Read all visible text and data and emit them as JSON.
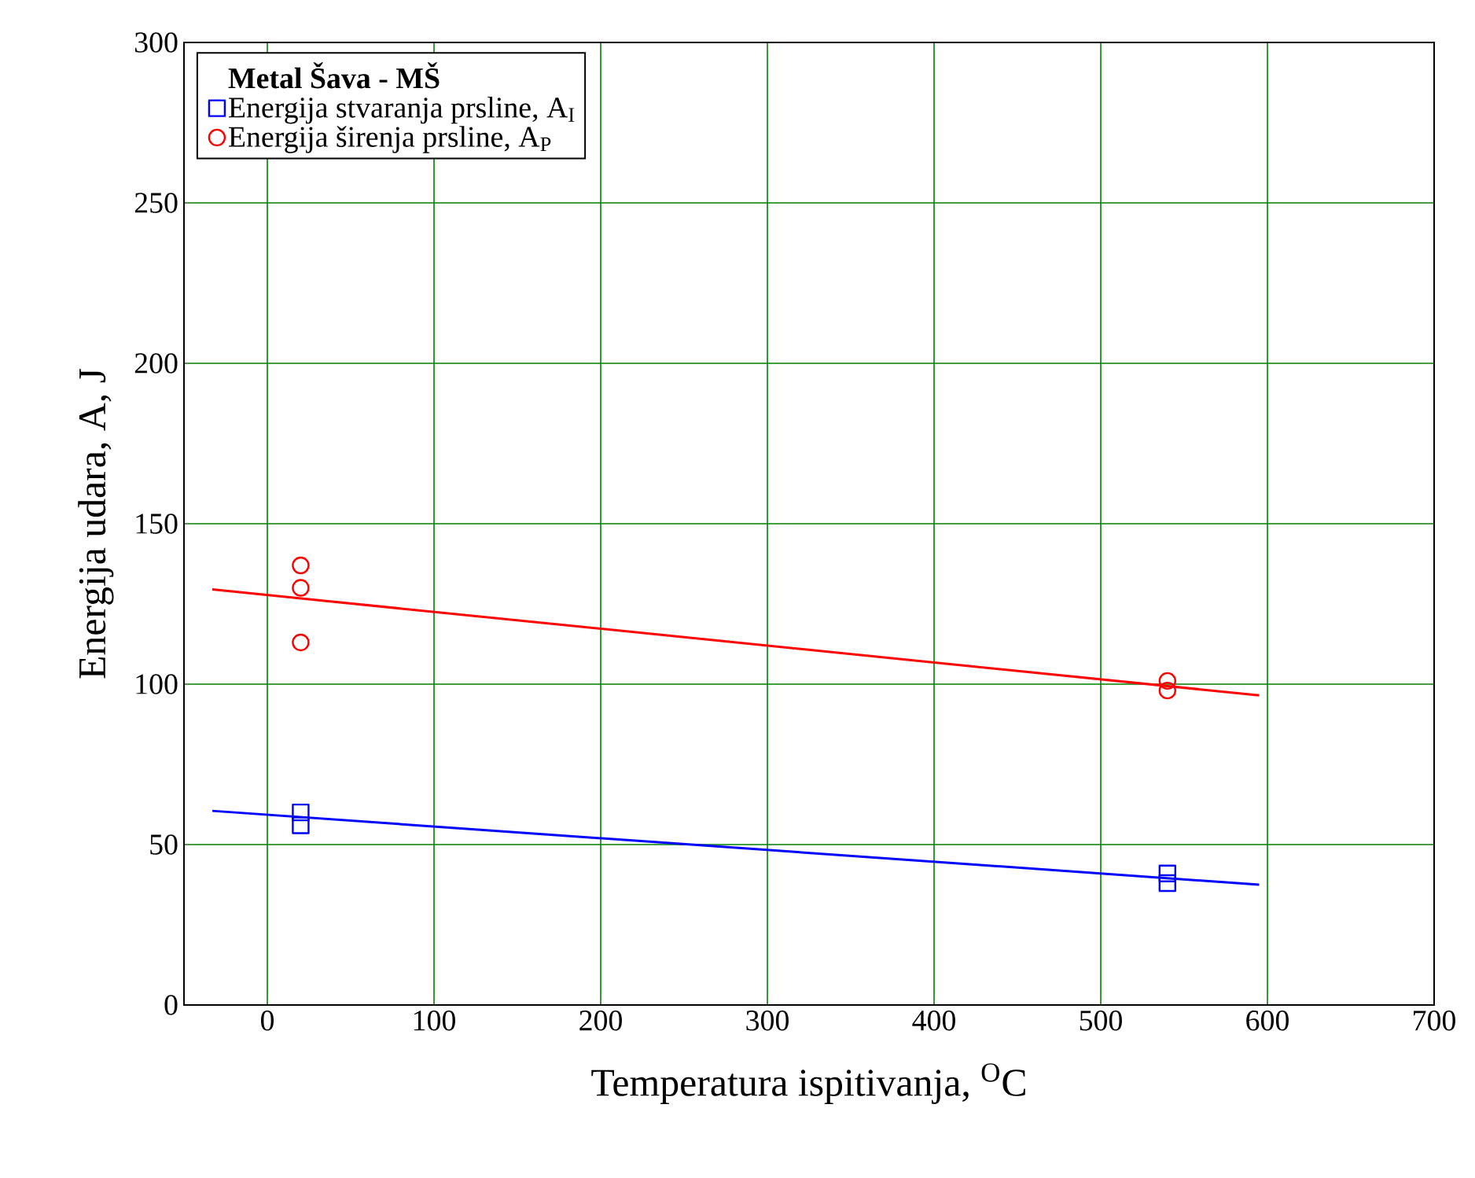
{
  "chart_data": {
    "type": "scatter",
    "xlabel": "Temperatura ispitivanja, $^{O}$C",
    "ylabel": "Energija udara, A, J",
    "legend_title": "Metal Šava - MŠ",
    "xlim": [
      -50,
      700
    ],
    "ylim": [
      0,
      300
    ],
    "xticks": [
      0,
      100,
      200,
      300,
      400,
      500,
      600,
      700
    ],
    "yticks": [
      0,
      50,
      100,
      150,
      200,
      250,
      300
    ],
    "grid": true,
    "legend": "top left",
    "series": [
      {
        "name": "Energija stvaranja prsline, A$_{I}$",
        "color": "#0000ff",
        "marker": "square",
        "x": [
          20,
          20,
          540,
          540
        ],
        "values": [
          60,
          56,
          41,
          38
        ]
      },
      {
        "name": "Energija širenja prsline, A$_{P}$",
        "color": "#ff0000",
        "marker": "circle",
        "x": [
          20,
          20,
          20,
          540,
          540
        ],
        "values": [
          137,
          130,
          113,
          101,
          98
        ]
      },
      {
        "type": "line",
        "color": "#0000ff",
        "marker": "none",
        "x": [
          -33,
          595
        ],
        "values": [
          60.5,
          37.5
        ]
      },
      {
        "type": "line",
        "color": "#ff0000",
        "marker": "none",
        "x": [
          -33,
          595
        ],
        "values": [
          129.5,
          96.5
        ]
      }
    ]
  }
}
